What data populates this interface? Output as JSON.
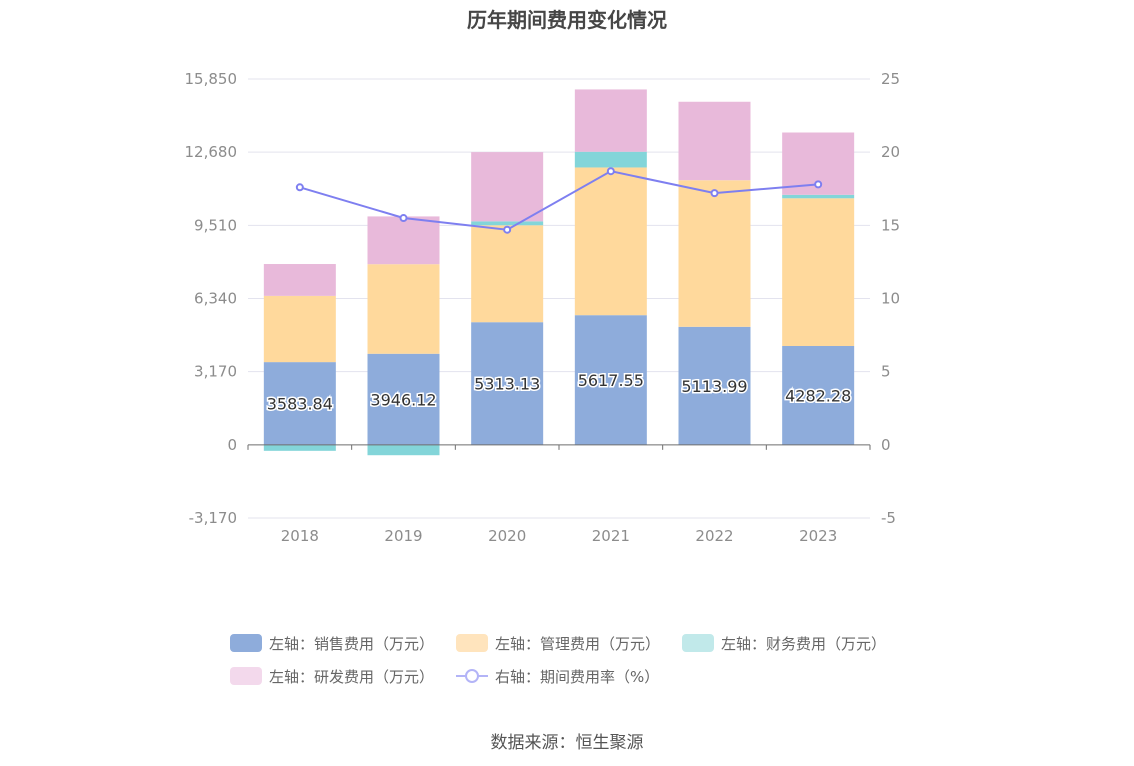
{
  "chart_data": {
    "type": "bar",
    "title": "历年期间费用变化情况",
    "categories": [
      "2018",
      "2019",
      "2020",
      "2021",
      "2022",
      "2023"
    ],
    "left_axis": {
      "ylim": [
        -3170,
        15850
      ],
      "ticks": [
        -3170,
        0,
        3170,
        6340,
        9510,
        12680,
        15850
      ],
      "tick_labels": [
        "-3,170",
        "0",
        "3,170",
        "6,340",
        "9,510",
        "12,680",
        "15,850"
      ]
    },
    "right_axis": {
      "ylim": [
        -5,
        25
      ],
      "ticks": [
        -5,
        0,
        5,
        10,
        15,
        20,
        25
      ],
      "tick_labels": [
        "-5",
        "0",
        "5",
        "10",
        "15",
        "20",
        "25"
      ]
    },
    "series": [
      {
        "name": "左轴：销售费用（万元）",
        "type": "bar",
        "axis": "left",
        "color": "#8eacdb",
        "values": [
          3583.84,
          3946.12,
          5313.13,
          5617.55,
          5113.99,
          4282.28
        ]
      },
      {
        "name": "左轴：管理费用（万元）",
        "type": "bar",
        "axis": "left",
        "color": "#ffd99c",
        "values": [
          2870,
          3880,
          4200,
          6400,
          6350,
          6400
        ]
      },
      {
        "name": "左轴：财务费用（万元）",
        "type": "bar",
        "axis": "left",
        "color": "#83d5d9",
        "values": [
          -260,
          -450,
          170,
          680,
          0,
          150
        ]
      },
      {
        "name": "左轴：研发费用（万元）",
        "type": "bar",
        "axis": "left",
        "color": "#e8b9da",
        "values": [
          1380,
          2070,
          3000,
          2700,
          3400,
          2700
        ]
      },
      {
        "name": "右轴：期间费用率（%）",
        "type": "line",
        "axis": "right",
        "color": "#7e7ff0",
        "values": [
          17.6,
          15.5,
          14.7,
          18.7,
          17.2,
          17.8
        ]
      }
    ],
    "data_labels": [
      "3583.84",
      "3946.12",
      "5313.13",
      "5617.55",
      "5113.99",
      "4282.28"
    ],
    "legend_position": "bottom"
  },
  "legend": {
    "items": [
      {
        "label": "左轴：销售费用（万元）",
        "color": "#8eacdb",
        "kind": "bar"
      },
      {
        "label": "左轴：管理费用（万元）",
        "color": "#ffe4bd",
        "kind": "bar"
      },
      {
        "label": "左轴：财务费用（万元）",
        "color": "#c1e9ea",
        "kind": "bar"
      },
      {
        "label": "左轴：研发费用（万元）",
        "color": "#f3d9ec",
        "kind": "bar"
      },
      {
        "label": "右轴：期间费用率（%）",
        "color": "#b3b4f7",
        "kind": "line"
      }
    ]
  },
  "source": "数据来源：恒生聚源"
}
